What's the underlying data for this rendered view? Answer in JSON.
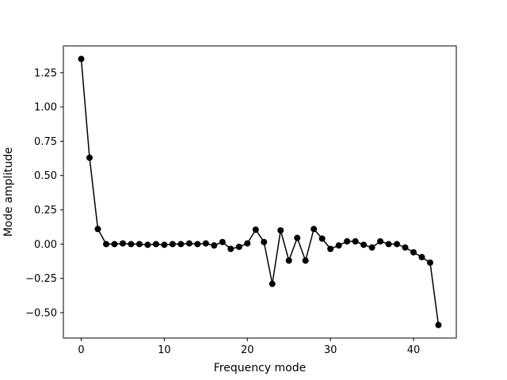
{
  "chart_data": {
    "type": "line",
    "title": "",
    "xlabel": "Frequency mode",
    "ylabel": "Mode amplitude",
    "xlim": [
      -2.15,
      45.15
    ],
    "ylim": [
      -0.685,
      1.445
    ],
    "x_ticks": [
      0,
      10,
      20,
      30,
      40
    ],
    "y_ticks": [
      -0.5,
      -0.25,
      0.0,
      0.25,
      0.5,
      0.75,
      1.0,
      1.25
    ],
    "x_tick_labels": [
      "0",
      "10",
      "20",
      "30",
      "40"
    ],
    "y_tick_labels": [
      "−0.50",
      "−0.25",
      "0.00",
      "0.25",
      "0.50",
      "0.75",
      "1.00",
      "1.25"
    ],
    "grid": false,
    "legend": "none",
    "series": [
      {
        "color": "#000000",
        "marker": "circle",
        "x": [
          0,
          1,
          2,
          3,
          4,
          5,
          6,
          7,
          8,
          9,
          10,
          11,
          12,
          13,
          14,
          15,
          16,
          17,
          18,
          19,
          20,
          21,
          22,
          23,
          24,
          25,
          26,
          27,
          28,
          29,
          30,
          31,
          32,
          33,
          34,
          35,
          36,
          37,
          38,
          39,
          40,
          41,
          42,
          43
        ],
        "values": [
          1.35,
          0.63,
          0.11,
          0.0,
          0.0,
          0.005,
          0.0,
          0.0,
          -0.005,
          0.0,
          -0.005,
          0.0,
          0.0,
          0.005,
          0.0,
          0.005,
          -0.01,
          0.015,
          -0.035,
          -0.02,
          0.005,
          0.105,
          0.015,
          -0.29,
          0.1,
          -0.12,
          0.045,
          -0.12,
          0.11,
          0.04,
          -0.035,
          -0.01,
          0.02,
          0.02,
          -0.005,
          -0.025,
          0.02,
          0.0,
          0.0,
          -0.025,
          -0.06,
          -0.095,
          -0.135,
          -0.59
        ]
      }
    ]
  }
}
